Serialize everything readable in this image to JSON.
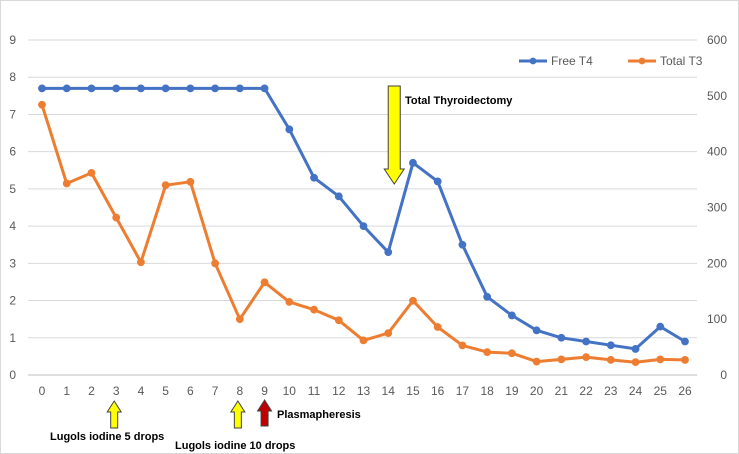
{
  "chart_data": {
    "type": "line",
    "x": [
      0,
      1,
      2,
      3,
      4,
      5,
      6,
      7,
      8,
      9,
      10,
      11,
      12,
      13,
      14,
      15,
      16,
      17,
      18,
      19,
      20,
      21,
      22,
      23,
      24,
      25,
      26
    ],
    "left_axis": {
      "min": 0,
      "max": 9,
      "ticks": [
        "0",
        "1",
        "2",
        "3",
        "4",
        "5",
        "6",
        "7",
        "8",
        "9"
      ]
    },
    "right_axis": {
      "min": 0,
      "max": 600,
      "ticks": [
        "0",
        "100",
        "200",
        "300",
        "400",
        "500",
        "600"
      ]
    },
    "grid": true,
    "legend_position": "top-right",
    "series": [
      {
        "name": "Free T4",
        "axis": "left",
        "color": "#4472C4",
        "values": [
          7.7,
          7.7,
          7.7,
          7.7,
          7.7,
          7.7,
          7.7,
          7.7,
          7.7,
          7.7,
          6.6,
          5.3,
          4.8,
          4.0,
          3.3,
          5.7,
          5.2,
          3.5,
          2.1,
          1.6,
          1.2,
          1.0,
          0.9,
          0.8,
          0.7,
          1.3,
          0.9
        ]
      },
      {
        "name": "Total T3",
        "axis": "right",
        "color": "#ED7D31",
        "values": [
          484,
          343,
          362,
          282,
          202,
          340,
          346,
          200,
          100,
          166,
          131,
          117,
          98,
          62,
          75,
          133,
          86,
          53,
          41,
          39,
          24,
          28,
          32,
          27,
          23,
          28,
          27
        ]
      }
    ],
    "annotations": [
      {
        "id": "thyroidectomy",
        "text": "Total Thyroidectomy",
        "x": 14,
        "arrow_color": "#FFFF00",
        "direction": "down"
      },
      {
        "id": "lugols5",
        "text": "Lugols iodine 5 drops",
        "x": 3,
        "arrow_color": "#FFFF00",
        "direction": "up"
      },
      {
        "id": "lugols10",
        "text": "Lugols iodine 10 drops",
        "x": 8,
        "arrow_color": "#FFFF00",
        "direction": "up"
      },
      {
        "id": "plasmapheresis",
        "text": "Plasmapheresis",
        "x": 9,
        "arrow_color": "#C00000",
        "direction": "up"
      }
    ]
  }
}
